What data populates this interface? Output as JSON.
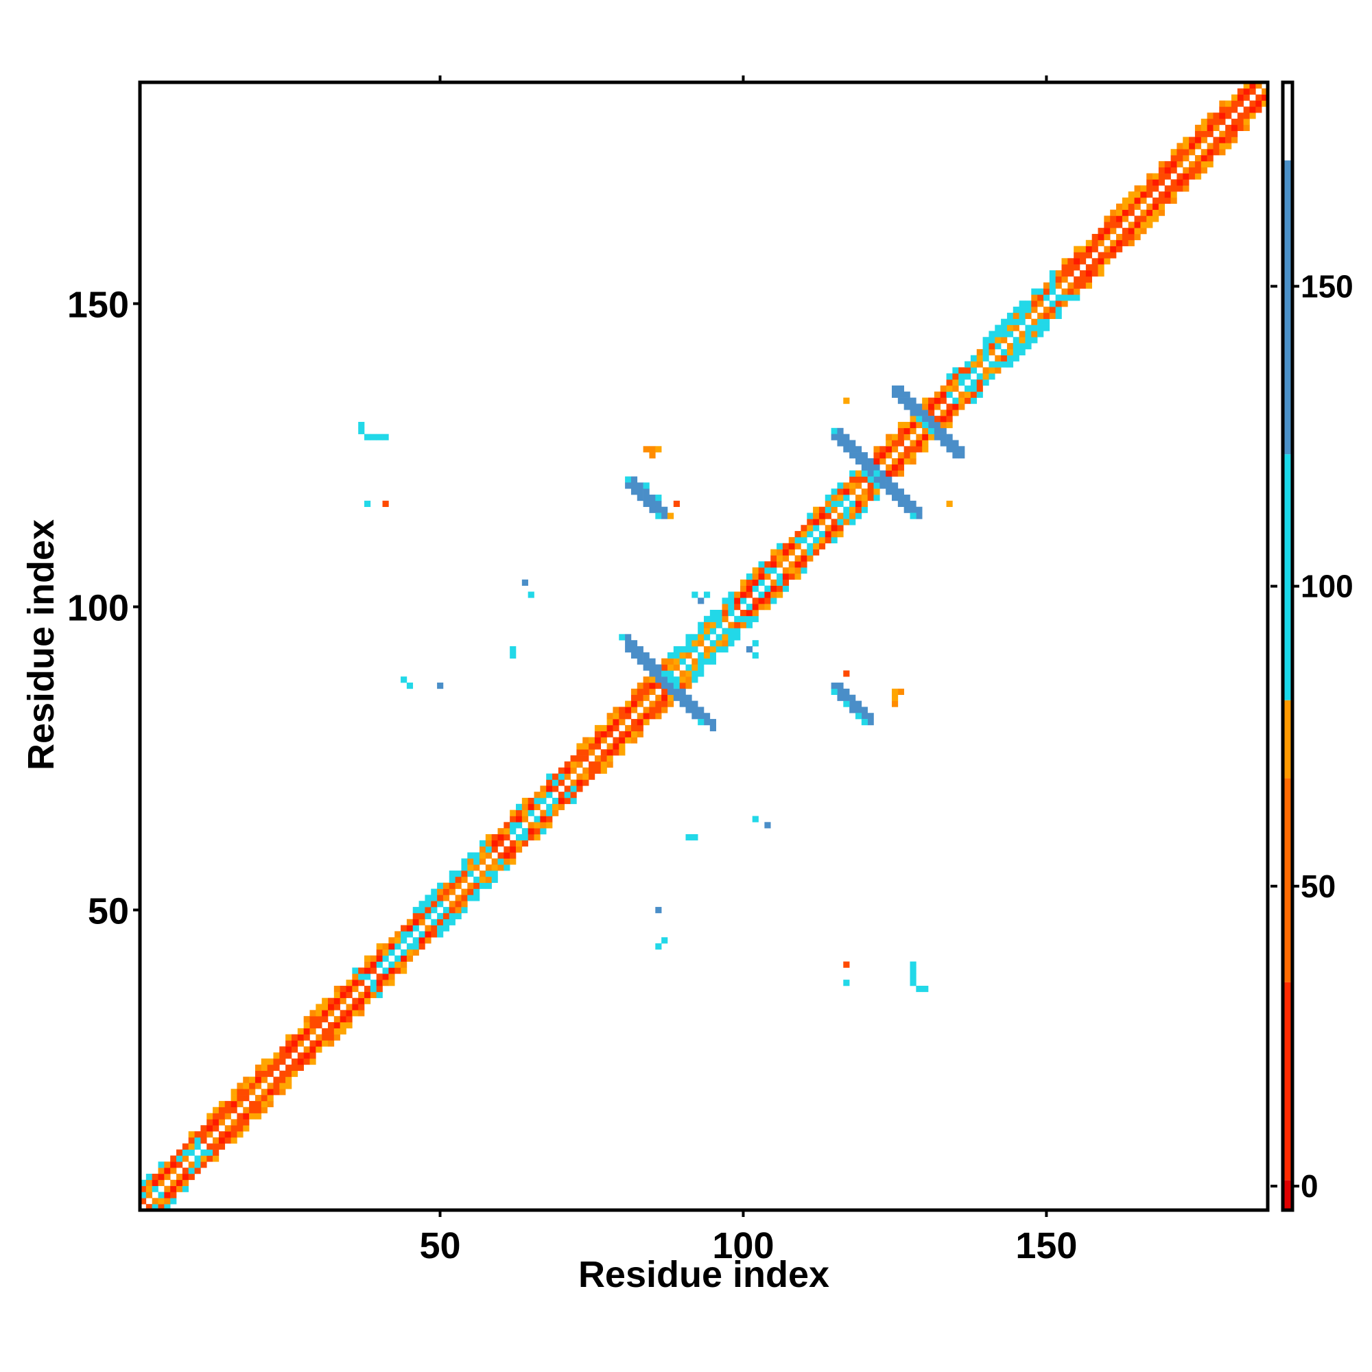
{
  "chart_data": {
    "type": "heatmap",
    "title": "",
    "xlabel": "Residue index",
    "ylabel": "Residue index",
    "xlim": [
      1,
      186
    ],
    "ylim": [
      1,
      186
    ],
    "x_ticks": [
      50,
      100,
      150
    ],
    "y_ticks": [
      50,
      100,
      150
    ],
    "grid": false,
    "colorbar": {
      "range": [
        -4,
        184
      ],
      "ticks": [
        0,
        50,
        100,
        150
      ],
      "bands": [
        {
          "from": -4,
          "to": 1,
          "color": "#e00000"
        },
        {
          "from": 1,
          "to": 34,
          "color": "#ff2a00"
        },
        {
          "from": 34,
          "to": 68,
          "color": "#ff6a00"
        },
        {
          "from": 68,
          "to": 81,
          "color": "#ff9a00"
        },
        {
          "from": 81,
          "to": 122,
          "color": "#1ad9ea"
        },
        {
          "from": 122,
          "to": 171,
          "color": "#4a90c8"
        },
        {
          "from": 171,
          "to": 184,
          "color": "#ffffff"
        }
      ]
    },
    "palette": {
      "red": "#ff1a00",
      "red_orange": "#ff4a00",
      "orange": "#ff8c00",
      "amber": "#ffa500",
      "cyan": "#22d8e8",
      "steel_blue": "#4a8ec8"
    },
    "diagonal": {
      "from": 1,
      "to": 186
    },
    "segments": [
      {
        "from": 1,
        "to": 10,
        "pattern": "mixed"
      },
      {
        "from": 10,
        "to": 35,
        "pattern": "helix"
      },
      {
        "from": 35,
        "to": 46,
        "pattern": "mixed"
      },
      {
        "from": 46,
        "to": 56,
        "pattern": "strand"
      },
      {
        "from": 56,
        "to": 72,
        "pattern": "mixed"
      },
      {
        "from": 72,
        "to": 87,
        "pattern": "helix"
      },
      {
        "from": 87,
        "to": 98,
        "pattern": "strand"
      },
      {
        "from": 98,
        "to": 106,
        "pattern": "mixed"
      },
      {
        "from": 106,
        "to": 118,
        "pattern": "mixed"
      },
      {
        "from": 118,
        "to": 128,
        "pattern": "helix"
      },
      {
        "from": 128,
        "to": 136,
        "pattern": "mixed"
      },
      {
        "from": 136,
        "to": 152,
        "pattern": "strand"
      },
      {
        "from": 152,
        "to": 186,
        "pattern": "helix"
      }
    ],
    "lines": [
      {
        "x1": 80,
        "y1": 95,
        "x2": 93,
        "y2": 81,
        "color": "steel_blue",
        "width": 2,
        "step": 0.5
      },
      {
        "x1": 115,
        "y1": 129,
        "x2": 128,
        "y2": 115,
        "color": "steel_blue",
        "width": 2,
        "step": 0.5
      },
      {
        "x1": 125,
        "y1": 135,
        "x2": 135,
        "y2": 125,
        "color": "steel_blue",
        "width": 2,
        "step": 0.5
      },
      {
        "x1": 81,
        "y1": 121,
        "x2": 86,
        "y2": 115,
        "color": "steel_blue",
        "width": 2,
        "step": 0.5
      },
      {
        "x1": 115,
        "y1": 86,
        "x2": 120,
        "y2": 81,
        "color": "steel_blue",
        "width": 2,
        "step": 0.5
      }
    ],
    "points": [
      {
        "x": 88,
        "y": 88,
        "color": "cyan"
      },
      {
        "x": 87,
        "y": 89,
        "color": "cyan"
      },
      {
        "x": 89,
        "y": 87,
        "color": "cyan"
      },
      {
        "x": 121,
        "y": 121,
        "color": "cyan"
      },
      {
        "x": 122,
        "y": 122,
        "color": "cyan"
      },
      {
        "x": 120,
        "y": 122,
        "color": "cyan"
      },
      {
        "x": 122,
        "y": 120,
        "color": "cyan"
      },
      {
        "x": 130,
        "y": 130,
        "color": "cyan"
      },
      {
        "x": 129,
        "y": 131,
        "color": "cyan"
      },
      {
        "x": 131,
        "y": 129,
        "color": "cyan"
      },
      {
        "x": 80,
        "y": 95,
        "color": "cyan"
      },
      {
        "x": 93,
        "y": 81,
        "color": "cyan"
      },
      {
        "x": 115,
        "y": 129,
        "color": "cyan"
      },
      {
        "x": 128,
        "y": 115,
        "color": "cyan"
      },
      {
        "x": 81,
        "y": 121,
        "color": "cyan"
      },
      {
        "x": 86,
        "y": 115,
        "color": "cyan"
      },
      {
        "x": 115,
        "y": 86,
        "color": "cyan"
      },
      {
        "x": 120,
        "y": 81,
        "color": "cyan"
      },
      {
        "x": 84,
        "y": 120,
        "color": "cyan"
      },
      {
        "x": 86,
        "y": 118,
        "color": "cyan"
      },
      {
        "x": 117,
        "y": 84,
        "color": "cyan"
      },
      {
        "x": 119,
        "y": 82,
        "color": "cyan"
      },
      {
        "x": 84,
        "y": 126,
        "color": "orange"
      },
      {
        "x": 85,
        "y": 126,
        "color": "orange"
      },
      {
        "x": 86,
        "y": 126,
        "color": "amber"
      },
      {
        "x": 85,
        "y": 125,
        "color": "orange"
      },
      {
        "x": 89,
        "y": 117,
        "color": "red_orange"
      },
      {
        "x": 88,
        "y": 115,
        "color": "amber"
      },
      {
        "x": 125,
        "y": 84,
        "color": "orange"
      },
      {
        "x": 125,
        "y": 85,
        "color": "amber"
      },
      {
        "x": 126,
        "y": 86,
        "color": "orange"
      },
      {
        "x": 125,
        "y": 86,
        "color": "amber"
      },
      {
        "x": 117,
        "y": 89,
        "color": "red_orange"
      },
      {
        "x": 117,
        "y": 134,
        "color": "amber"
      },
      {
        "x": 134,
        "y": 117,
        "color": "amber"
      },
      {
        "x": 37,
        "y": 130,
        "color": "cyan"
      },
      {
        "x": 37,
        "y": 129,
        "color": "cyan"
      },
      {
        "x": 38,
        "y": 128,
        "color": "cyan"
      },
      {
        "x": 39,
        "y": 128,
        "color": "cyan"
      },
      {
        "x": 40,
        "y": 128,
        "color": "cyan"
      },
      {
        "x": 41,
        "y": 128,
        "color": "cyan"
      },
      {
        "x": 38,
        "y": 117,
        "color": "cyan"
      },
      {
        "x": 41,
        "y": 117,
        "color": "red_orange"
      },
      {
        "x": 130,
        "y": 37,
        "color": "cyan"
      },
      {
        "x": 129,
        "y": 37,
        "color": "cyan"
      },
      {
        "x": 128,
        "y": 38,
        "color": "cyan"
      },
      {
        "x": 128,
        "y": 39,
        "color": "cyan"
      },
      {
        "x": 128,
        "y": 40,
        "color": "cyan"
      },
      {
        "x": 128,
        "y": 41,
        "color": "cyan"
      },
      {
        "x": 117,
        "y": 38,
        "color": "cyan"
      },
      {
        "x": 117,
        "y": 41,
        "color": "red_orange"
      },
      {
        "x": 64,
        "y": 104,
        "color": "steel_blue"
      },
      {
        "x": 65,
        "y": 102,
        "color": "cyan"
      },
      {
        "x": 104,
        "y": 64,
        "color": "steel_blue"
      },
      {
        "x": 102,
        "y": 65,
        "color": "cyan"
      },
      {
        "x": 62,
        "y": 92,
        "color": "cyan"
      },
      {
        "x": 62,
        "y": 93,
        "color": "cyan"
      },
      {
        "x": 91,
        "y": 62,
        "color": "cyan"
      },
      {
        "x": 92,
        "y": 62,
        "color": "cyan"
      },
      {
        "x": 44,
        "y": 88,
        "color": "cyan"
      },
      {
        "x": 45,
        "y": 87,
        "color": "cyan"
      },
      {
        "x": 50,
        "y": 87,
        "color": "steel_blue"
      },
      {
        "x": 87,
        "y": 45,
        "color": "cyan"
      },
      {
        "x": 86,
        "y": 44,
        "color": "cyan"
      },
      {
        "x": 86,
        "y": 50,
        "color": "steel_blue"
      },
      {
        "x": 92,
        "y": 102,
        "color": "cyan"
      },
      {
        "x": 93,
        "y": 101,
        "color": "steel_blue"
      },
      {
        "x": 94,
        "y": 102,
        "color": "cyan"
      },
      {
        "x": 101,
        "y": 93,
        "color": "steel_blue"
      },
      {
        "x": 102,
        "y": 92,
        "color": "cyan"
      },
      {
        "x": 102,
        "y": 94,
        "color": "cyan"
      }
    ]
  }
}
